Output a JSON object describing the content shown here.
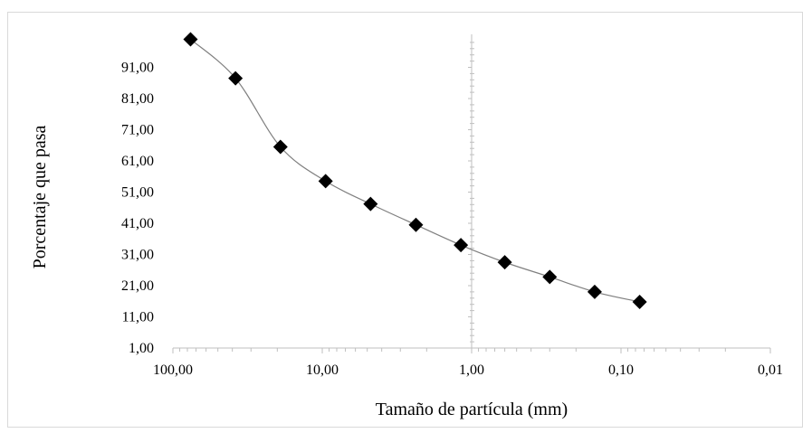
{
  "chart_data": {
    "type": "scatter",
    "title": "",
    "xlabel": "Tamaño de partícula (mm)",
    "ylabel": "Porcentaje que pasa",
    "x_scale": "log",
    "x_reversed": true,
    "xlim": [
      100,
      0.01
    ],
    "ylim": [
      1,
      101
    ],
    "x_ticks": [
      100,
      10,
      1,
      0.1,
      0.01
    ],
    "x_tick_labels": [
      "100,00",
      "10,00",
      "1,00",
      "0,10",
      "0,01"
    ],
    "y_ticks": [
      1,
      11,
      21,
      31,
      41,
      51,
      61,
      71,
      81,
      91
    ],
    "y_tick_labels": [
      "1,00",
      "11,00",
      "21,00",
      "31,00",
      "41,00",
      "51,00",
      "61,00",
      "71,00",
      "81,00",
      "91,00"
    ],
    "grid": false,
    "legend": "none",
    "marker": "diamond",
    "line": "smooth",
    "colors": {
      "marker": "#000000",
      "line": "#7f7f7f",
      "axis": "#bfbfbf"
    },
    "series": [
      {
        "x": [
          76.2,
          38.1,
          19.05,
          9.5,
          4.75,
          2.36,
          1.18,
          0.6,
          0.3,
          0.15,
          0.075
        ],
        "y": [
          100.0,
          87.5,
          65.5,
          54.5,
          47.2,
          40.5,
          34.0,
          28.5,
          23.8,
          19.0,
          15.8
        ]
      }
    ]
  }
}
